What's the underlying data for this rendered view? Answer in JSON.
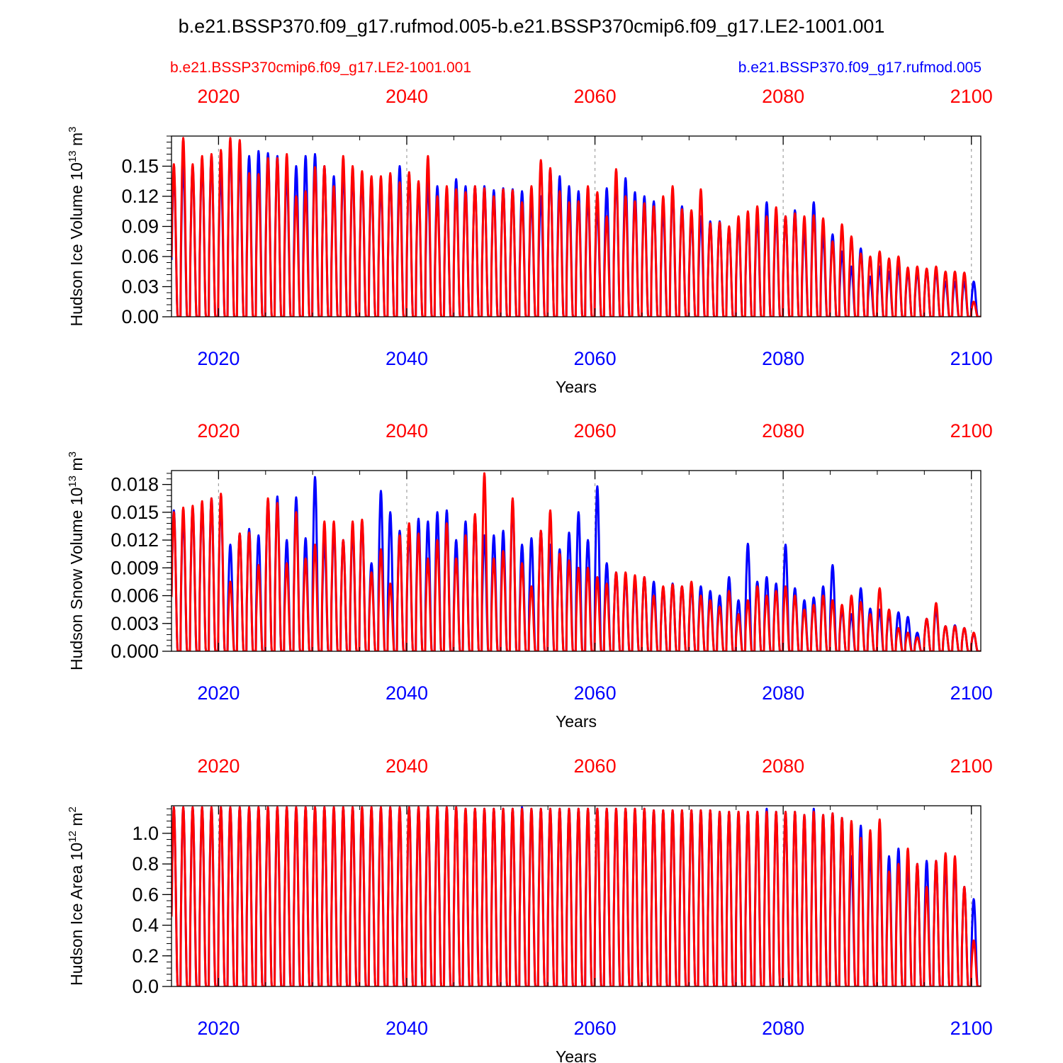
{
  "title": "b.e21.BSSP370.f09_g17.rufmod.005-b.e21.BSSP370cmip6.f09_g17.LE2-1001.001",
  "legend": {
    "red_label": "b.e21.BSSP370cmip6.f09_g17.LE2-1001.001",
    "blue_label": "b.e21.BSSP370.f09_g17.rufmod.005"
  },
  "colors": {
    "red": "#ff0000",
    "blue": "#0000ff",
    "grid": "#a0a0a0",
    "axis": "#000000"
  },
  "chart_data": [
    {
      "type": "line",
      "ylabel_main": "Hudson Ice Volume 10",
      "ylabel_exp": "13",
      "ylabel_unit": " m",
      "ylabel_unit_exp": "3",
      "xlabel": "Years",
      "xlim": [
        2015,
        2101
      ],
      "ylim": [
        0,
        0.18
      ],
      "yticks": [
        0,
        0.03,
        0.06,
        0.09,
        0.12,
        0.15
      ],
      "ytick_labels": [
        "0.00",
        "0.03",
        "0.06",
        "0.09",
        "0.12",
        "0.15"
      ],
      "xticks": [
        2020,
        2040,
        2060,
        2080,
        2100
      ],
      "xtick_labels": [
        "2020",
        "2040",
        "2060",
        "2080",
        "2100"
      ],
      "series": [
        {
          "name": "b.e21.BSSP370.f09_g17.rufmod.005",
          "color": "blue",
          "peaks": [
            0.145,
            0.152,
            0.15,
            0.155,
            0.16,
            0.145,
            0.172,
            0.162,
            0.16,
            0.165,
            0.163,
            0.16,
            0.145,
            0.15,
            0.16,
            0.162,
            0.15,
            0.14,
            0.147,
            0.145,
            0.14,
            0.135,
            0.132,
            0.14,
            0.15,
            0.14,
            0.13,
            0.135,
            0.13,
            0.125,
            0.137,
            0.13,
            0.13,
            0.13,
            0.126,
            0.128,
            0.127,
            0.125,
            0.118,
            0.12,
            0.147,
            0.14,
            0.13,
            0.125,
            0.12,
            0.11,
            0.128,
            0.14,
            0.138,
            0.124,
            0.12,
            0.115,
            0.108,
            0.125,
            0.11,
            0.1,
            0.1,
            0.095,
            0.095,
            0.088,
            0.095,
            0.1,
            0.1,
            0.114,
            0.1,
            0.1,
            0.106,
            0.087,
            0.114,
            0.082,
            0.082,
            0.065,
            0.05,
            0.068,
            0.04,
            0.05,
            0.045,
            0.05,
            0.045,
            0.045,
            0.047,
            0.045,
            0.035,
            0.035,
            0.035,
            0.035
          ]
        },
        {
          "name": "b.e21.BSSP370cmip6.f09_g17.LE2-1001.001",
          "color": "red",
          "peaks": [
            0.152,
            0.178,
            0.152,
            0.16,
            0.162,
            0.166,
            0.178,
            0.176,
            0.143,
            0.142,
            0.158,
            0.158,
            0.162,
            0.12,
            0.125,
            0.149,
            0.15,
            0.13,
            0.16,
            0.15,
            0.145,
            0.14,
            0.14,
            0.143,
            0.134,
            0.144,
            0.135,
            0.16,
            0.12,
            0.13,
            0.127,
            0.124,
            0.13,
            0.128,
            0.12,
            0.127,
            0.126,
            0.114,
            0.13,
            0.156,
            0.148,
            0.125,
            0.114,
            0.115,
            0.13,
            0.124,
            0.1,
            0.147,
            0.12,
            0.115,
            0.113,
            0.11,
            0.12,
            0.13,
            0.107,
            0.106,
            0.127,
            0.093,
            0.094,
            0.09,
            0.1,
            0.105,
            0.11,
            0.1,
            0.109,
            0.1,
            0.103,
            0.1,
            0.101,
            0.098,
            0.075,
            0.092,
            0.08,
            0.063,
            0.06,
            0.065,
            0.058,
            0.06,
            0.049,
            0.05,
            0.048,
            0.05,
            0.045,
            0.045,
            0.044,
            0.015
          ]
        }
      ]
    },
    {
      "type": "line",
      "ylabel_main": "Hudson Snow Volume 10",
      "ylabel_exp": "13",
      "ylabel_unit": " m",
      "ylabel_unit_exp": "3",
      "xlabel": "Years",
      "xlim": [
        2015,
        2101
      ],
      "ylim": [
        0,
        0.0195
      ],
      "yticks": [
        0,
        0.003,
        0.006,
        0.009,
        0.012,
        0.015,
        0.018
      ],
      "ytick_labels": [
        "0.000",
        "0.003",
        "0.006",
        "0.009",
        "0.012",
        "0.015",
        "0.018"
      ],
      "xticks": [
        2020,
        2040,
        2060,
        2080,
        2100
      ],
      "xtick_labels": [
        "2020",
        "2040",
        "2060",
        "2080",
        "2100"
      ],
      "series": [
        {
          "name": "b.e21.BSSP370.f09_g17.rufmod.005",
          "color": "blue",
          "peaks": [
            0.0152,
            0.0145,
            0.0155,
            0.0158,
            0.0165,
            0.0162,
            0.0115,
            0.0127,
            0.0132,
            0.0125,
            0.0163,
            0.0167,
            0.012,
            0.0166,
            0.0122,
            0.0188,
            0.012,
            0.0132,
            0.012,
            0.0132,
            0.014,
            0.0095,
            0.0173,
            0.015,
            0.013,
            0.0128,
            0.0143,
            0.014,
            0.015,
            0.0152,
            0.012,
            0.014,
            0.0145,
            0.0125,
            0.0125,
            0.013,
            0.016,
            0.0115,
            0.0122,
            0.013,
            0.0115,
            0.011,
            0.0128,
            0.015,
            0.012,
            0.0178,
            0.0095,
            0.0085,
            0.008,
            0.0075,
            0.008,
            0.0075,
            0.0068,
            0.0073,
            0.007,
            0.007,
            0.007,
            0.0065,
            0.006,
            0.008,
            0.0055,
            0.0116,
            0.0075,
            0.008,
            0.0073,
            0.0115,
            0.0068,
            0.0055,
            0.0058,
            0.007,
            0.0093,
            0.0045,
            0.004,
            0.0068,
            0.0046,
            0.0045,
            0.004,
            0.0042,
            0.0037,
            0.002,
            0.0035,
            0.0045,
            0.0027,
            0.0028,
            0.0025,
            0.0019
          ]
        },
        {
          "name": "b.e21.BSSP370cmip6.f09_g17.LE2-1001.001",
          "color": "red",
          "peaks": [
            0.015,
            0.0155,
            0.0157,
            0.0162,
            0.0165,
            0.017,
            0.0075,
            0.0127,
            0.0128,
            0.0093,
            0.0165,
            0.016,
            0.0095,
            0.015,
            0.01,
            0.0115,
            0.014,
            0.014,
            0.012,
            0.014,
            0.0142,
            0.0085,
            0.011,
            0.0073,
            0.0125,
            0.0138,
            0.0127,
            0.01,
            0.012,
            0.0138,
            0.01,
            0.0125,
            0.0148,
            0.0192,
            0.01,
            0.0108,
            0.0165,
            0.0095,
            0.007,
            0.013,
            0.0152,
            0.0105,
            0.0098,
            0.009,
            0.009,
            0.008,
            0.0073,
            0.0085,
            0.0085,
            0.0082,
            0.008,
            0.006,
            0.007,
            0.0072,
            0.007,
            0.0075,
            0.006,
            0.0055,
            0.0048,
            0.0065,
            0.004,
            0.0055,
            0.007,
            0.006,
            0.0065,
            0.007,
            0.006,
            0.0045,
            0.005,
            0.006,
            0.0055,
            0.005,
            0.006,
            0.0053,
            0.004,
            0.0068,
            0.0045,
            0.0025,
            0.002,
            0.0015,
            0.0035,
            0.0052,
            0.0027,
            0.0027,
            0.0025,
            0.002
          ]
        }
      ]
    },
    {
      "type": "line",
      "ylabel_main": "Hudson Ice Area 10",
      "ylabel_exp": "12",
      "ylabel_unit": " m",
      "ylabel_unit_exp": "2",
      "xlabel": "Years",
      "xlim": [
        2015,
        2101
      ],
      "ylim": [
        0,
        1.18
      ],
      "yticks": [
        0,
        0.2,
        0.4,
        0.6,
        0.8,
        1.0
      ],
      "ytick_labels": [
        "0.0",
        "0.2",
        "0.4",
        "0.6",
        "0.8",
        "1.0"
      ],
      "xticks": [
        2020,
        2040,
        2060,
        2080,
        2100
      ],
      "xtick_labels": [
        "2020",
        "2040",
        "2060",
        "2080",
        "2100"
      ],
      "series": [
        {
          "name": "b.e21.BSSP370.f09_g17.rufmod.005",
          "color": "blue",
          "peaks": [
            1.17,
            1.17,
            1.17,
            1.17,
            1.17,
            1.17,
            1.17,
            1.17,
            1.17,
            1.17,
            1.17,
            1.17,
            1.17,
            1.17,
            1.17,
            1.17,
            1.17,
            1.17,
            1.17,
            1.17,
            1.17,
            1.17,
            1.17,
            1.17,
            1.17,
            1.17,
            1.17,
            1.17,
            1.17,
            1.17,
            1.17,
            1.16,
            1.16,
            1.16,
            1.16,
            1.16,
            1.16,
            1.17,
            1.16,
            1.16,
            1.16,
            1.16,
            1.16,
            1.16,
            1.16,
            1.16,
            1.16,
            1.16,
            1.16,
            1.16,
            1.16,
            1.15,
            1.15,
            1.15,
            1.15,
            1.15,
            1.15,
            1.15,
            1.14,
            1.14,
            1.14,
            1.14,
            1.14,
            1.16,
            1.14,
            1.14,
            1.14,
            1.12,
            1.16,
            1.12,
            1.13,
            1.1,
            0.85,
            1.05,
            0.9,
            1.0,
            0.85,
            0.9,
            0.8,
            0.8,
            0.82,
            0.82,
            0.8,
            0.8,
            0.65,
            0.57
          ]
        },
        {
          "name": "b.e21.BSSP370cmip6.f09_g17.LE2-1001.001",
          "color": "red",
          "peaks": [
            1.17,
            1.17,
            1.17,
            1.17,
            1.17,
            1.17,
            1.17,
            1.17,
            1.17,
            1.17,
            1.17,
            1.17,
            1.17,
            1.17,
            1.17,
            1.17,
            1.17,
            1.17,
            1.17,
            1.17,
            1.17,
            1.17,
            1.17,
            1.17,
            1.17,
            1.17,
            1.17,
            1.17,
            1.17,
            1.17,
            1.17,
            1.16,
            1.16,
            1.16,
            1.16,
            1.16,
            1.16,
            1.16,
            1.16,
            1.16,
            1.16,
            1.16,
            1.16,
            1.16,
            1.16,
            1.16,
            1.16,
            1.16,
            1.16,
            1.16,
            1.16,
            1.15,
            1.15,
            1.15,
            1.15,
            1.15,
            1.15,
            1.15,
            1.14,
            1.14,
            1.14,
            1.14,
            1.14,
            1.14,
            1.14,
            1.14,
            1.14,
            1.12,
            1.14,
            1.12,
            1.13,
            1.1,
            1.08,
            0.97,
            1.02,
            1.09,
            0.75,
            0.8,
            0.9,
            0.8,
            0.65,
            0.82,
            0.87,
            0.85,
            0.65,
            0.3
          ]
        }
      ]
    }
  ]
}
